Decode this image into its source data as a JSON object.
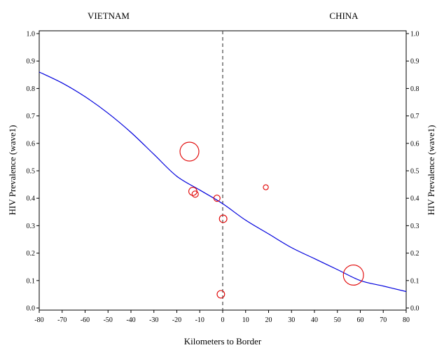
{
  "chart_data": {
    "type": "scatter",
    "region_labels": {
      "left": "VIETNAM",
      "right": "CHINA"
    },
    "xlabel": "Kilometers to Border",
    "ylabel_left": "HIV Prevalence (wave1)",
    "ylabel_right": "HIV Prevalence (wave1)",
    "xlim": [
      -80,
      80
    ],
    "ylim": [
      0.0,
      1.0
    ],
    "x_ticks": [
      "-80",
      "-70",
      "-60",
      "-50",
      "-40",
      "-30",
      "-20",
      "-10",
      "0",
      "10",
      "20",
      "30",
      "40",
      "50",
      "60",
      "70",
      "80"
    ],
    "y_ticks": [
      "0.0",
      "0.1",
      "0.2",
      "0.3",
      "0.4",
      "0.5",
      "0.6",
      "0.7",
      "0.8",
      "0.9",
      "1.0"
    ],
    "border_line_x": 0,
    "grid": false,
    "fitted_curve": {
      "color": "#0000dd",
      "points": [
        [
          -80,
          0.86
        ],
        [
          -70,
          0.82
        ],
        [
          -60,
          0.77
        ],
        [
          -50,
          0.71
        ],
        [
          -40,
          0.64
        ],
        [
          -30,
          0.56
        ],
        [
          -20,
          0.48
        ],
        [
          -10,
          0.43
        ],
        [
          0,
          0.38
        ],
        [
          10,
          0.32
        ],
        [
          20,
          0.27
        ],
        [
          30,
          0.22
        ],
        [
          40,
          0.18
        ],
        [
          50,
          0.14
        ],
        [
          60,
          0.1
        ],
        [
          70,
          0.08
        ],
        [
          80,
          0.06
        ]
      ]
    },
    "points": {
      "color": "#e00000",
      "values": [
        {
          "x": -14.5,
          "y": 0.57,
          "size": 3
        },
        {
          "x": -13,
          "y": 0.425,
          "size": 1.3
        },
        {
          "x": -12,
          "y": 0.415,
          "size": 1
        },
        {
          "x": -2.5,
          "y": 0.4,
          "size": 1
        },
        {
          "x": 0.2,
          "y": 0.325,
          "size": 1.2
        },
        {
          "x": -0.8,
          "y": 0.05,
          "size": 1.2
        },
        {
          "x": 18.8,
          "y": 0.44,
          "size": 0.8
        },
        {
          "x": 57,
          "y": 0.12,
          "size": 3.2
        }
      ]
    }
  }
}
